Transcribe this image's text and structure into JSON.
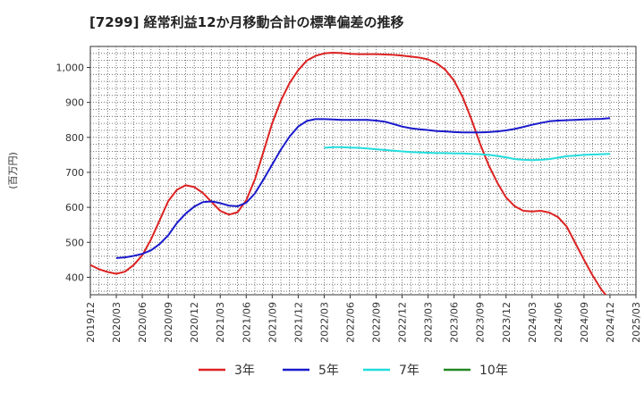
{
  "chart_data": {
    "type": "line",
    "title": "[7299]  経常利益12か月移動合計の標準偏差の推移",
    "ylabel": "(百万円)",
    "xlabel": "",
    "ylim": [
      350,
      1060
    ],
    "yticks": [
      400,
      500,
      600,
      700,
      800,
      900,
      1000
    ],
    "ytick_labels": [
      "400",
      "500",
      "600",
      "700",
      "800",
      "900",
      "1,000"
    ],
    "xlim": [
      "2019-12",
      "2025-03"
    ],
    "xticks": [
      "2019/12",
      "2020/03",
      "2020/06",
      "2020/09",
      "2020/12",
      "2021/03",
      "2021/06",
      "2021/09",
      "2021/12",
      "2022/03",
      "2022/06",
      "2022/09",
      "2022/12",
      "2023/03",
      "2023/06",
      "2023/09",
      "2023/12",
      "2024/03",
      "2024/06",
      "2024/09",
      "2024/12",
      "2025/03"
    ],
    "grid": true,
    "legend_position": "bottom",
    "series": [
      {
        "name": "3年",
        "color": "#dd2222",
        "x": [
          "2019-12",
          "2020-01",
          "2020-02",
          "2020-03",
          "2020-04",
          "2020-05",
          "2020-06",
          "2020-07",
          "2020-08",
          "2020-09",
          "2020-10",
          "2020-11",
          "2020-12",
          "2021-01",
          "2021-02",
          "2021-03",
          "2021-04",
          "2021-05",
          "2021-06",
          "2021-07",
          "2021-08",
          "2021-09",
          "2021-10",
          "2021-11",
          "2021-12",
          "2022-01",
          "2022-02",
          "2022-03",
          "2022-04",
          "2022-05",
          "2022-06",
          "2022-07",
          "2022-08",
          "2022-09",
          "2022-10",
          "2022-11",
          "2022-12",
          "2023-01",
          "2023-02",
          "2023-03",
          "2023-04",
          "2023-05",
          "2023-06",
          "2023-07",
          "2023-08",
          "2023-09",
          "2023-10",
          "2023-11",
          "2023-12",
          "2024-01",
          "2024-02",
          "2024-03",
          "2024-04",
          "2024-05",
          "2024-06",
          "2024-07",
          "2024-08",
          "2024-09",
          "2024-10",
          "2024-11",
          "2024-12"
        ],
        "values": [
          435,
          423,
          415,
          410,
          416,
          435,
          463,
          508,
          563,
          618,
          650,
          663,
          658,
          641,
          615,
          590,
          579,
          586,
          620,
          680,
          760,
          840,
          905,
          955,
          992,
          1020,
          1033,
          1040,
          1042,
          1041,
          1039,
          1038,
          1038,
          1038,
          1037,
          1036,
          1034,
          1031,
          1028,
          1023,
          1012,
          993,
          962,
          915,
          852,
          782,
          720,
          670,
          628,
          603,
          590,
          588,
          590,
          585,
          572,
          545,
          498,
          450,
          405,
          365,
          335
        ]
      },
      {
        "name": "5年",
        "color": "#1a1acc",
        "x": [
          "2020-03",
          "2020-04",
          "2020-05",
          "2020-06",
          "2020-07",
          "2020-08",
          "2020-09",
          "2020-10",
          "2020-11",
          "2020-12",
          "2021-01",
          "2021-02",
          "2021-03",
          "2021-04",
          "2021-05",
          "2021-06",
          "2021-07",
          "2021-08",
          "2021-09",
          "2021-10",
          "2021-11",
          "2021-12",
          "2022-01",
          "2022-02",
          "2022-03",
          "2022-04",
          "2022-05",
          "2022-06",
          "2022-07",
          "2022-08",
          "2022-09",
          "2022-10",
          "2022-11",
          "2022-12",
          "2023-01",
          "2023-02",
          "2023-03",
          "2023-04",
          "2023-05",
          "2023-06",
          "2023-07",
          "2023-08",
          "2023-09",
          "2023-10",
          "2023-11",
          "2023-12",
          "2024-01",
          "2024-02",
          "2024-03",
          "2024-04",
          "2024-05",
          "2024-06",
          "2024-07",
          "2024-08",
          "2024-09",
          "2024-10",
          "2024-11",
          "2024-12"
        ],
        "values": [
          455,
          457,
          461,
          467,
          477,
          495,
          520,
          555,
          582,
          602,
          615,
          617,
          612,
          605,
          603,
          613,
          640,
          680,
          722,
          765,
          802,
          831,
          847,
          852,
          852,
          851,
          850,
          850,
          850,
          850,
          848,
          845,
          838,
          831,
          826,
          823,
          821,
          818,
          817,
          815,
          814,
          814,
          814,
          815,
          817,
          820,
          824,
          830,
          836,
          841,
          846,
          848,
          849,
          850,
          851,
          852,
          853,
          855
        ]
      },
      {
        "name": "7年",
        "color": "#22dddd",
        "x": [
          "2022-03",
          "2022-04",
          "2022-05",
          "2022-06",
          "2022-07",
          "2022-08",
          "2022-09",
          "2022-10",
          "2022-11",
          "2022-12",
          "2023-01",
          "2023-02",
          "2023-03",
          "2023-04",
          "2023-05",
          "2023-06",
          "2023-07",
          "2023-08",
          "2023-09",
          "2023-10",
          "2023-11",
          "2023-12",
          "2024-01",
          "2024-02",
          "2024-03",
          "2024-04",
          "2024-05",
          "2024-06",
          "2024-07",
          "2024-08",
          "2024-09",
          "2024-10",
          "2024-11",
          "2024-12"
        ],
        "values": [
          770,
          772,
          772,
          771,
          770,
          768,
          766,
          764,
          762,
          760,
          758,
          757,
          756,
          755,
          755,
          754,
          754,
          753,
          752,
          750,
          747,
          743,
          738,
          736,
          735,
          736,
          738,
          742,
          746,
          748,
          750,
          751,
          752,
          753
        ]
      },
      {
        "name": "10年",
        "color": "#228822",
        "x": [],
        "values": []
      }
    ]
  }
}
